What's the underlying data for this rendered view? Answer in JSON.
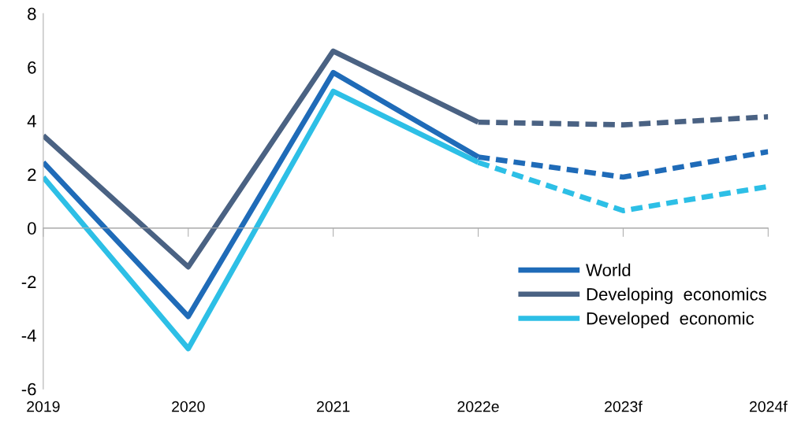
{
  "chart_data": {
    "type": "line",
    "x": [
      2019,
      2020,
      2021,
      2022,
      2023,
      2024
    ],
    "xlim": [
      2019,
      2024
    ],
    "xticks": [
      2019,
      2020,
      2021,
      {
        "value": 2022,
        "label": "2022e"
      },
      {
        "value": 2023,
        "label": "2023f"
      },
      {
        "value": 2024,
        "label": "2024f"
      }
    ],
    "series": [
      {
        "name": "World",
        "color": "#1f6bb8",
        "line_style": "solid",
        "values": [
          2.45,
          -3.3,
          5.8,
          2.65,
          null,
          null
        ]
      },
      {
        "name": "Developing  economics",
        "color": "#4a6283",
        "line_style": "solid",
        "values": [
          3.45,
          -1.45,
          6.6,
          3.95,
          null,
          null
        ]
      },
      {
        "name": "Developed  economic",
        "color": "#2dbfe6",
        "line_style": "solid",
        "values": [
          1.9,
          -4.5,
          5.1,
          2.45,
          null,
          null
        ]
      },
      {
        "color": "#1f6bb8",
        "line_style": "dashed",
        "values": [
          null,
          null,
          null,
          2.65,
          1.9,
          2.85
        ]
      },
      {
        "color": "#4a6283",
        "line_style": "dashed",
        "values": [
          null,
          null,
          null,
          3.95,
          3.85,
          4.15
        ]
      },
      {
        "color": "#2dbfe6",
        "line_style": "dashed",
        "values": [
          null,
          null,
          null,
          2.45,
          0.65,
          1.55
        ]
      }
    ],
    "ylim": [
      -6,
      8
    ],
    "yticks": [
      -6,
      -4,
      -2,
      0,
      2,
      4,
      6,
      8
    ],
    "ref_lines": [
      {
        "axis": "y",
        "value": 0,
        "color": "#b0b0b0"
      }
    ],
    "grid": false,
    "legend": "bottom right",
    "marker": "none"
  }
}
